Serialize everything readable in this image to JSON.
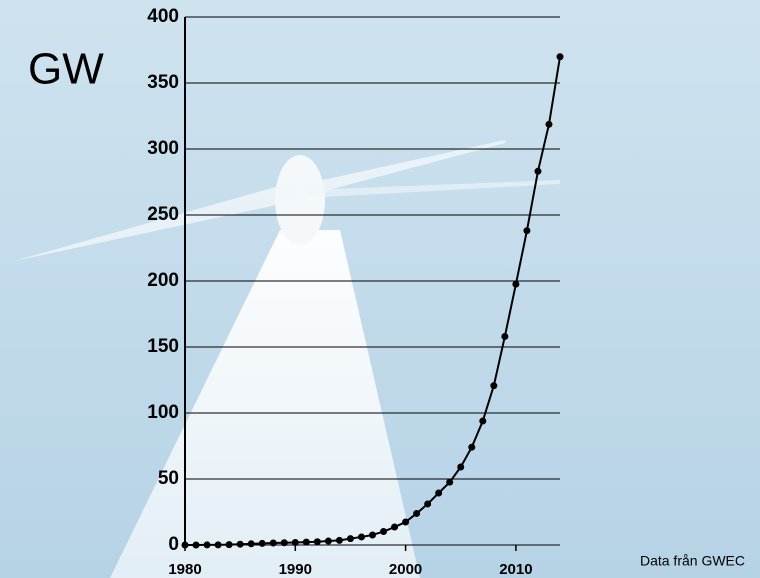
{
  "chart_data": {
    "type": "line",
    "y_label": "GW",
    "source": "Data från GWEC",
    "x": [
      1980,
      1981,
      1982,
      1983,
      1984,
      1985,
      1986,
      1987,
      1988,
      1989,
      1990,
      1991,
      1992,
      1993,
      1994,
      1995,
      1996,
      1997,
      1998,
      1999,
      2000,
      2001,
      2002,
      2003,
      2004,
      2005,
      2006,
      2007,
      2008,
      2009,
      2010,
      2011,
      2012,
      2013,
      2014
    ],
    "series": [
      {
        "color": "#000000",
        "values": [
          0.01,
          0.02,
          0.05,
          0.1,
          0.3,
          0.6,
          0.9,
          1.2,
          1.5,
          1.7,
          1.9,
          2.2,
          2.5,
          3,
          3.5,
          4.8,
          6.1,
          7.6,
          10.2,
          13.6,
          17.4,
          23.9,
          31.1,
          39.4,
          47.6,
          59.1,
          74.1,
          93.9,
          120.7,
          158,
          197.6,
          238.1,
          283.1,
          318.7,
          369.9
        ]
      }
    ],
    "xlim": [
      1980,
      2014
    ],
    "xticks": [
      1980,
      1990,
      2000,
      2010
    ],
    "ylim": [
      0,
      400
    ],
    "yticks": [
      0,
      50,
      100,
      150,
      200,
      250,
      300,
      350,
      400
    ],
    "grid": true
  }
}
